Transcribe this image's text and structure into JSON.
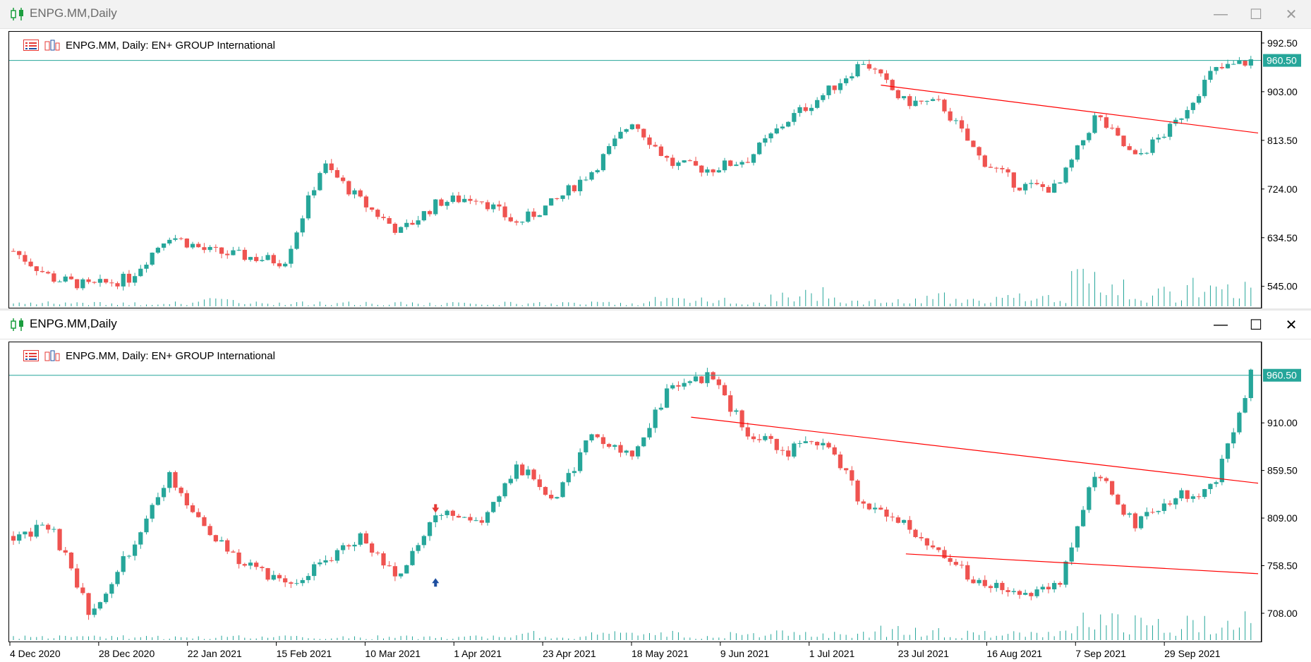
{
  "windows": [
    {
      "id": "top",
      "title": "ENPG.MM,Daily",
      "active": false,
      "header": "ENPG.MM, Daily:  EN+ GROUP International",
      "price_labels": [
        "992.50",
        "903.00",
        "813.50",
        "724.00",
        "634.50",
        "545.00"
      ],
      "current_price": "960.50"
    },
    {
      "id": "bottom",
      "title": "ENPG.MM,Daily",
      "active": true,
      "header": "ENPG.MM, Daily:  EN+ GROUP International",
      "price_labels": [
        "910.00",
        "859.50",
        "809.00",
        "758.50",
        "708.00"
      ],
      "current_price": "960.50",
      "date_labels": [
        "4 Dec 2020",
        "28 Dec 2020",
        "22 Jan 2021",
        "15 Feb 2021",
        "10 Mar 2021",
        "1 Apr 2021",
        "23 Apr 2021",
        "18 May 2021",
        "9 Jun 2021",
        "1 Jul 2021",
        "23 Jul 2021",
        "16 Aug 2021",
        "7 Sep 2021",
        "29 Sep 2021"
      ]
    }
  ],
  "colors": {
    "bull": "#26a69a",
    "bear": "#ef5350",
    "trendline": "#ff0000",
    "price_line": "#26a69a",
    "volume": "#26a69a",
    "arrow_buy": "#1e4fa0",
    "arrow_sell": "#e53935"
  },
  "icons": {
    "title": "candlestick-chart-icon",
    "header_left": "objects-list-icon",
    "header_right": "chart-type-icon",
    "minimize": "minimize-icon",
    "maximize": "maximize-icon",
    "close": "close-icon"
  },
  "chart_data": [
    {
      "type": "candlestick",
      "title": "ENPG.MM, Daily:  EN+ GROUP International",
      "ylim": [
        520,
        995
      ],
      "x": [
        "4 Dec 2020",
        "28 Dec 2020",
        "22 Jan 2021",
        "15 Feb 2021",
        "10 Mar 2021",
        "1 Apr 2021",
        "23 Apr 2021",
        "18 May 2021",
        "9 Jun 2021",
        "1 Jul 2021",
        "23 Jul 2021",
        "16 Aug 2021",
        "7 Sep 2021",
        "29 Sep 2021"
      ],
      "close_path": [
        610,
        560,
        545,
        560,
        640,
        610,
        600,
        590,
        770,
        700,
        645,
        700,
        710,
        660,
        700,
        760,
        850,
        770,
        760,
        780,
        850,
        900,
        960,
        885,
        880,
        780,
        730,
        725,
        860,
        780,
        840,
        940,
        960
      ],
      "volume_profile": [
        1,
        1,
        1,
        1,
        1,
        2,
        1,
        1,
        1,
        1,
        1,
        1,
        1,
        1,
        1,
        1,
        1,
        2,
        2,
        1,
        3,
        4,
        2,
        2,
        3,
        2,
        3,
        3,
        8,
        6,
        4,
        6,
        5
      ],
      "trendlines": [
        {
          "x0": 0.698,
          "y0": 915,
          "x1": 1.0,
          "y1": 827
        }
      ],
      "price_line": 960.5,
      "grid": false
    },
    {
      "type": "candlestick",
      "title": "ENPG.MM, Daily:  EN+ GROUP International",
      "ylim": [
        690,
        985
      ],
      "x": [
        "4 Dec 2020",
        "28 Dec 2020",
        "22 Jan 2021",
        "15 Feb 2021",
        "10 Mar 2021",
        "1 Apr 2021",
        "23 Apr 2021",
        "18 May 2021",
        "9 Jun 2021",
        "1 Jul 2021",
        "23 Jul 2021",
        "16 Aug 2021",
        "7 Sep 2021",
        "29 Sep 2021"
      ],
      "close_path": [
        790,
        800,
        705,
        775,
        855,
        800,
        760,
        740,
        760,
        790,
        745,
        820,
        800,
        865,
        830,
        900,
        875,
        950,
        960,
        900,
        880,
        895,
        820,
        805,
        770,
        740,
        725,
        735,
        860,
        800,
        830,
        840,
        960
      ],
      "volume_profile": [
        1,
        1,
        1,
        1,
        1,
        1,
        1,
        1,
        1,
        1,
        1,
        1,
        1,
        2,
        1,
        2,
        2,
        2,
        1,
        2,
        2,
        2,
        2,
        3,
        3,
        2,
        2,
        2,
        8,
        6,
        5,
        6,
        8
      ],
      "trendlines": [
        {
          "x0": 0.546,
          "y0": 916,
          "x1": 1.0,
          "y1": 846
        },
        {
          "x0": 0.718,
          "y0": 771,
          "x1": 1.0,
          "y1": 750
        }
      ],
      "markers": [
        {
          "kind": "buy-arrow",
          "at": "10 Mar 2021"
        },
        {
          "kind": "sell-arrow",
          "at": "10 Mar 2021"
        }
      ],
      "price_line": 960.5,
      "grid": false
    }
  ]
}
